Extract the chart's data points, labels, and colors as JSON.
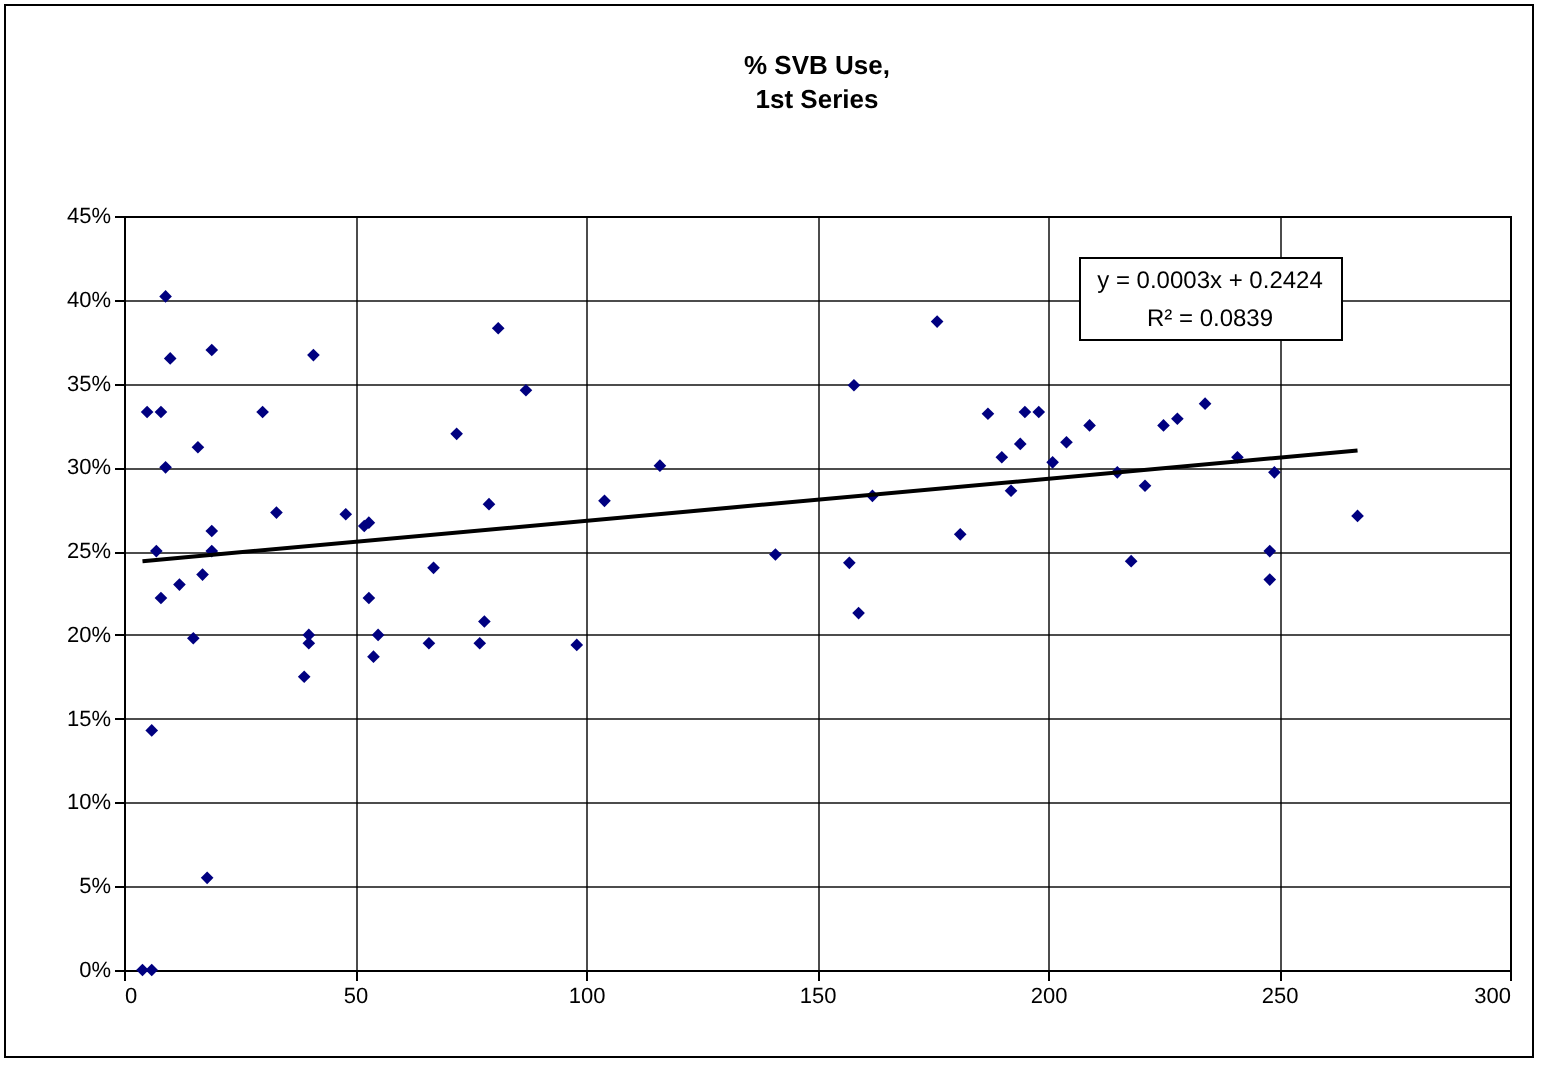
{
  "chart_data": {
    "type": "scatter",
    "title": "% SVB Use,\n1st Series",
    "annotations": [
      "y = 0.0003x + 0.2424",
      "R² = 0.0839"
    ],
    "grid": true,
    "xlim": [
      0,
      300
    ],
    "xticks": [
      0,
      50,
      100,
      150,
      200,
      250,
      300
    ],
    "ylim": [
      0,
      45
    ],
    "yticks": [
      {
        "value": 0,
        "label": "0%"
      },
      {
        "value": 5,
        "label": "5%"
      },
      {
        "value": 10,
        "label": "10%"
      },
      {
        "value": 15,
        "label": "15%"
      },
      {
        "value": 20,
        "label": "20%"
      },
      {
        "value": 25,
        "label": "25%"
      },
      {
        "value": 30,
        "label": "30%"
      },
      {
        "value": 35,
        "label": "35%"
      },
      {
        "value": 40,
        "label": "40%"
      },
      {
        "value": 45,
        "label": "45%"
      }
    ],
    "series": [
      {
        "marker": "diamond",
        "color": "#000080",
        "x": [
          4,
          6,
          6,
          18,
          5,
          8,
          9,
          10,
          19,
          16,
          9,
          7,
          8,
          12,
          15,
          17,
          19,
          19,
          30,
          33,
          40,
          40,
          39,
          41,
          48,
          52,
          53,
          53,
          54,
          55,
          66,
          67,
          72,
          77,
          78,
          79,
          81,
          87,
          98,
          104,
          116,
          141,
          157,
          158,
          159,
          162,
          176,
          181,
          187,
          190,
          192,
          194,
          195,
          198,
          201,
          204,
          209,
          215,
          218,
          221,
          225,
          228,
          234,
          241,
          248,
          248,
          249,
          267
        ],
        "values": [
          0,
          0,
          14.3,
          5.5,
          33.3,
          33.3,
          40.2,
          36.5,
          37,
          31.2,
          30,
          25,
          22.2,
          23,
          19.8,
          23.6,
          26.2,
          25,
          33.3,
          27.3,
          20,
          19.5,
          17.5,
          36.7,
          27.2,
          26.5,
          26.7,
          22.2,
          18.7,
          20,
          19.5,
          24,
          32,
          19.5,
          20.8,
          27.8,
          38.3,
          34.6,
          19.4,
          28,
          30.1,
          24.8,
          24.3,
          34.9,
          21.3,
          28.3,
          38.7,
          26,
          33.2,
          30.6,
          28.6,
          31.4,
          33.3,
          33.3,
          30.3,
          31.5,
          32.5,
          29.7,
          24.4,
          28.9,
          32.5,
          32.9,
          33.8,
          30.6,
          25,
          23.3,
          29.7,
          27.1
        ]
      },
      {
        "type": "line",
        "color": "#000000",
        "x": [
          4,
          267
        ],
        "values": [
          24.4,
          31.0
        ]
      }
    ]
  }
}
